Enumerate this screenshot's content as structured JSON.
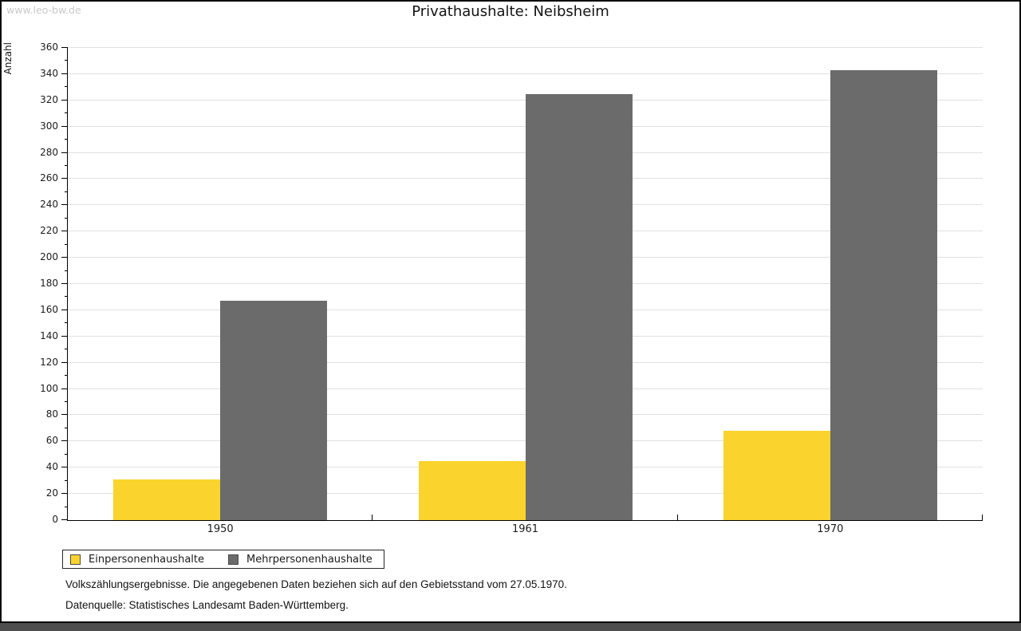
{
  "watermark": "www.leo-bw.de",
  "chart_data": {
    "type": "bar",
    "title": "Privathaushalte: Neibsheim",
    "xlabel": "",
    "ylabel": "Anzahl",
    "categories": [
      "1950",
      "1961",
      "1970"
    ],
    "series": [
      {
        "name": "Einpersonenhaushalte",
        "color": "#FBD32D",
        "values": [
          31,
          45,
          68
        ]
      },
      {
        "name": "Mehrpersonenhaushalte",
        "color": "#6B6B6B",
        "values": [
          167,
          325,
          343
        ]
      }
    ],
    "ylim": [
      0,
      360
    ],
    "ytick_step": 20,
    "ytick_minor_step": 10,
    "grid": true,
    "legend_position": "bottom-left"
  },
  "footnotes": [
    "Volkszählungsergebnisse. Die angegebenen Daten beziehen sich auf den Gebietsstand vom 27.05.1970.",
    "Datenquelle: Statistisches Landesamt Baden-Württemberg."
  ]
}
